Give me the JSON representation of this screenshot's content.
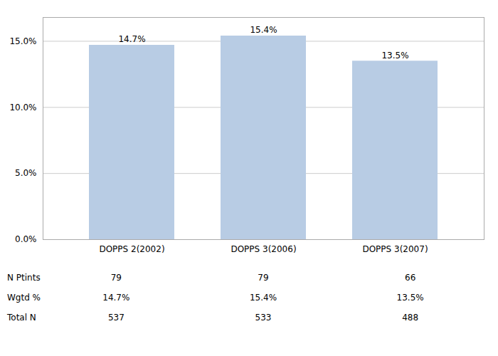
{
  "chart_data": {
    "type": "bar",
    "categories": [
      "DOPPS 2(2002)",
      "DOPPS 3(2006)",
      "DOPPS 3(2007)"
    ],
    "values": [
      0.147,
      0.154,
      0.135
    ],
    "value_labels": [
      "14.7%",
      "15.4%",
      "13.5%"
    ],
    "data_labels": true,
    "color": "#b8cce4",
    "ylim": [
      0,
      0.168
    ],
    "yticks": [
      {
        "value": 0.0,
        "label": "0.0%"
      },
      {
        "value": 0.05,
        "label": "5.0%"
      },
      {
        "value": 0.1,
        "label": "10.0%"
      },
      {
        "value": 0.15,
        "label": "15.0%"
      }
    ],
    "grid": true,
    "table": {
      "row_labels": [
        "N Ptints",
        "Wgtd %",
        "Total N"
      ],
      "rows": [
        [
          "79",
          "79",
          "66"
        ],
        [
          "14.7%",
          "15.4%",
          "13.5%"
        ],
        [
          "537",
          "533",
          "488"
        ]
      ]
    }
  }
}
